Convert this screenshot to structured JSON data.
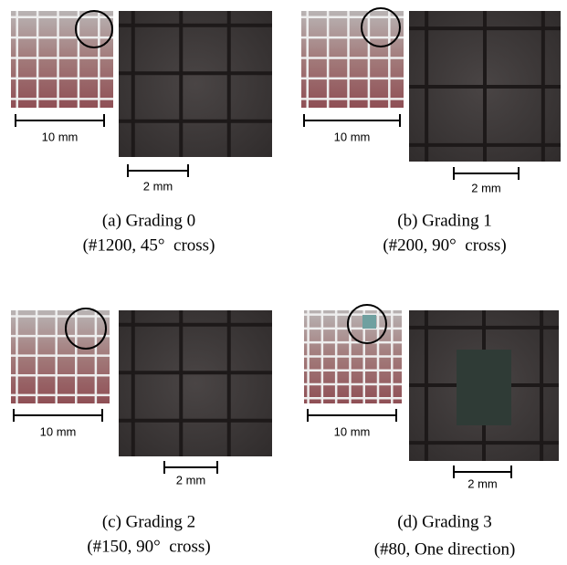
{
  "panels": [
    {
      "small_scale": "10 mm",
      "large_scale": "2 mm",
      "caption": "(a) Grading 0",
      "subcaption": "(#1200, 45°  cross)"
    },
    {
      "small_scale": "10 mm",
      "large_scale": "2 mm",
      "caption": "(b) Grading 1",
      "subcaption": "(#200, 90°  cross)"
    },
    {
      "small_scale": "10 mm",
      "large_scale": "2 mm",
      "caption": "(c) Grading 2",
      "subcaption": "(#150, 90°  cross)"
    },
    {
      "small_scale": "10 mm",
      "large_scale": "2 mm",
      "caption": "(d) Grading 3",
      "subcaption": "(#80, One direction)"
    }
  ]
}
